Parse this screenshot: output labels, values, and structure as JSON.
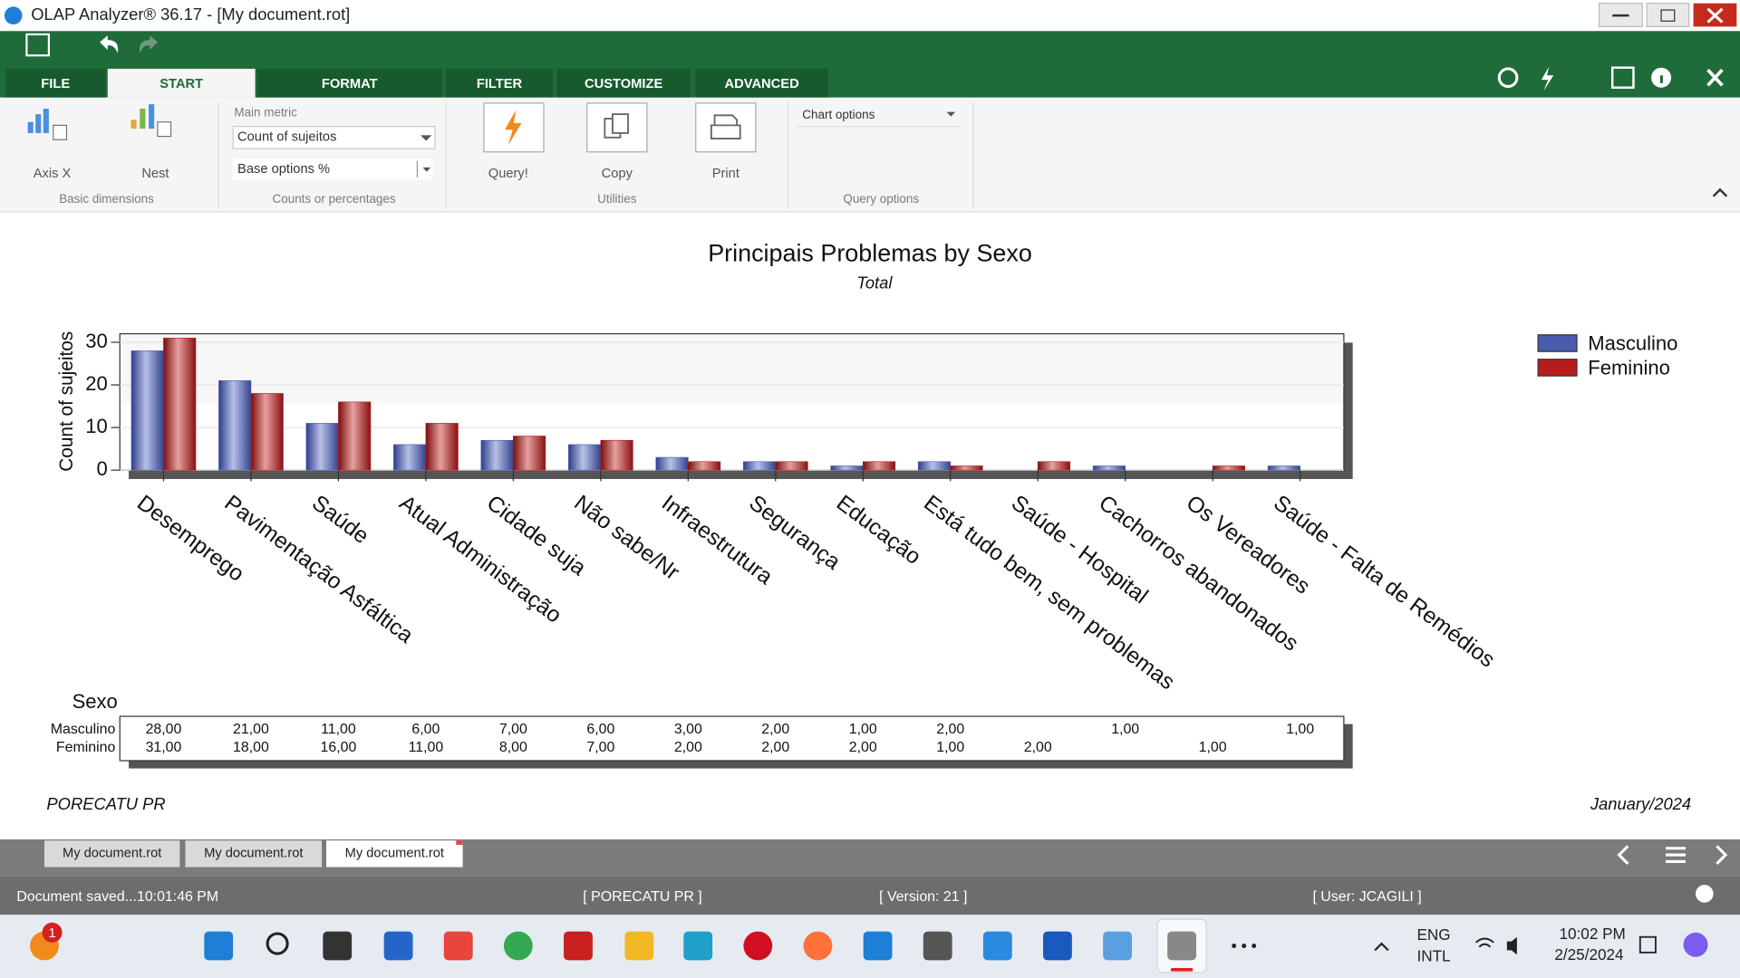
{
  "window": {
    "title": "OLAP Analyzer® 36.17 - [My document.rot]"
  },
  "ribbon": {
    "tabs": [
      "FILE",
      "START",
      "FORMAT",
      "FILTER",
      "CUSTOMIZE",
      "ADVANCED"
    ],
    "axis_x": "Axis X",
    "nest": "Nest",
    "basic_dimensions": "Basic dimensions",
    "main_metric_label": "Main metric",
    "main_metric": "Count of sujeitos",
    "base_options": "Base options %",
    "counts_group": "Counts or percentages",
    "query": "Query!",
    "copy": "Copy",
    "print": "Print",
    "utilities": "Utilities",
    "chart_options": "Chart options",
    "query_options": "Query options"
  },
  "chart_data": {
    "type": "bar",
    "title": "Principais Problemas by Sexo",
    "subtitle": "Total",
    "y_label": "Count of sujeitos",
    "table_header": "Sexo",
    "categories": [
      "Desemprego",
      "Pavimentação Asfáltica",
      "Saúde",
      "Atual Administração",
      "Cidade suja",
      "Não sabe/Nr",
      "Infraestrutura",
      "Segurança",
      "Educação",
      "Está tudo bem, sem problemas",
      "Saúde - Hospital",
      "Cachorros abandonados",
      "Os Vereadores",
      "Saúde - Falta de Remédios"
    ],
    "series": [
      {
        "name": "Masculino",
        "color": "#4a5cb0",
        "values": [
          28,
          21,
          11,
          6,
          7,
          6,
          3,
          2,
          1,
          2,
          null,
          1,
          null,
          1
        ],
        "value_labels": [
          "28,00",
          "21,00",
          "11,00",
          "6,00",
          "7,00",
          "6,00",
          "3,00",
          "2,00",
          "1,00",
          "2,00",
          null,
          "1,00",
          null,
          "1,00"
        ]
      },
      {
        "name": "Feminino",
        "color": "#b81c1c",
        "values": [
          31,
          18,
          16,
          11,
          8,
          7,
          2,
          2,
          2,
          1,
          2,
          null,
          1,
          null
        ],
        "value_labels": [
          "31,00",
          "18,00",
          "16,00",
          "11,00",
          "8,00",
          "7,00",
          "2,00",
          "2,00",
          "2,00",
          "1,00",
          "2,00",
          null,
          "1,00",
          null
        ]
      }
    ],
    "ylim": [
      0,
      32
    ],
    "yticks": [
      0,
      10,
      20,
      30
    ],
    "grid": true,
    "legend": "right"
  },
  "report": {
    "footer_left": "PORECATU PR",
    "footer_right": "January/2024"
  },
  "document_tabs": [
    "My document.rot",
    "My document.rot",
    "My document.rot"
  ],
  "status_bar": {
    "message": "Document saved...10:01:46 PM",
    "location": "[ PORECATU PR ]",
    "version": "[ Version: 21 ]",
    "user": "[ User: JCAGILI ]"
  },
  "taskbar": {
    "notification_badge": "1",
    "language": "ENG",
    "layout": "INTL",
    "time": "10:02 PM",
    "date": "2/25/2024"
  }
}
